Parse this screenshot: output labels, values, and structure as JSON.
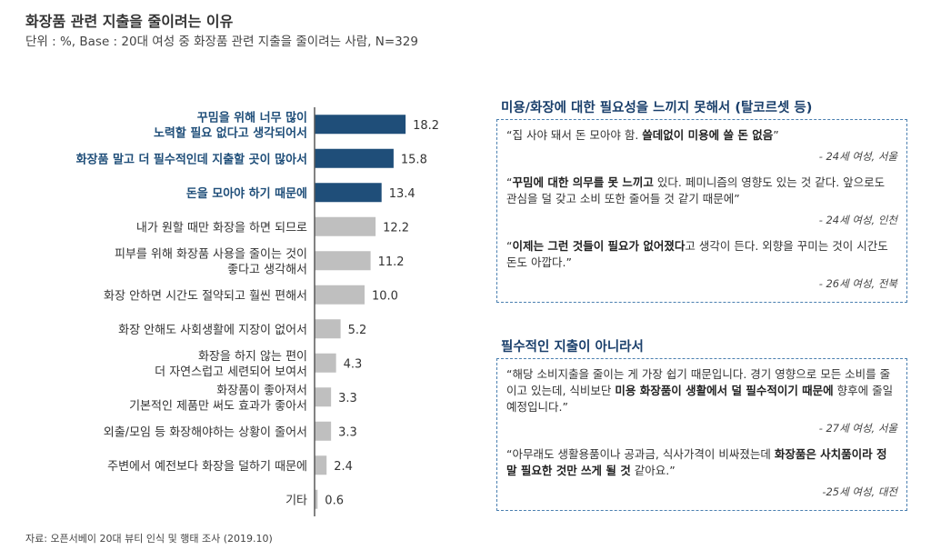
{
  "header": {
    "title": "화장품 관련 지출을 줄이려는 이유",
    "subtitle": "단위 : %, Base : 20대 여성 중 화장품 관련 지출을 줄이려는 사람, N=329"
  },
  "colors": {
    "highlight": "#1f4e79",
    "normal": "#bfbfbf",
    "axis": "#595959"
  },
  "chart_data": {
    "type": "bar",
    "orientation": "horizontal",
    "title": "화장품 관련 지출을 줄이려는 이유",
    "unit": "%",
    "categories": [
      [
        "꾸밈을 위해 너무 많이",
        "노력할 필요 없다고 생각되어서"
      ],
      [
        "화장품 말고 더 필수적인데 지출할 곳이 많아서"
      ],
      [
        "돈을 모아야 하기 때문에"
      ],
      [
        "내가 원할 때만 화장을 하면 되므로"
      ],
      [
        "피부를 위해 화장품 사용을 줄이는 것이",
        "좋다고 생각해서"
      ],
      [
        "화장 안하면 시간도 절약되고 훨씬 편해서"
      ],
      [
        "화장 안해도 사회생활에 지장이 없어서"
      ],
      [
        "화장을 하지 않는 편이",
        "더 자연스럽고 세련되어 보여서"
      ],
      [
        "화장품이 좋아져서",
        "기본적인 제품만 써도 효과가 좋아서"
      ],
      [
        "외출/모임 등 화장해야하는 상황이 줄어서"
      ],
      [
        "주변에서 예전보다 화장을 덜하기 때문에"
      ],
      [
        "기타"
      ]
    ],
    "values": [
      18.2,
      15.8,
      13.4,
      12.2,
      11.2,
      10.0,
      5.2,
      4.3,
      3.3,
      3.3,
      2.4,
      0.6
    ],
    "value_labels": [
      "18.2",
      "15.8",
      "13.4",
      "12.2",
      "11.2",
      "10.0",
      "5.2",
      "4.3",
      "3.3",
      "3.3",
      "2.4",
      "0.6"
    ],
    "highlighted": [
      true,
      true,
      true,
      false,
      false,
      false,
      false,
      false,
      false,
      false,
      false,
      false
    ],
    "xlim": [
      0,
      20
    ]
  },
  "right_panel": {
    "section1": {
      "title": "미용/화장에 대한 필요성을 느끼지 못해서 (탈코르셋 등)",
      "quotes": [
        {
          "plain1": "“집 사야 돼서 돈 모아야 함. ",
          "bold1": "쓸데없이 미용에 쓸 돈 없음",
          "plain2": "”",
          "bold2": "",
          "plain3": "",
          "attribution": "- 24세 여성, 서울"
        },
        {
          "plain1": "“",
          "bold1": "꾸밈에 대한 의무를 못 느끼고",
          "plain2": " 있다. 페미니즘의 영향도 있는 것 같다. 앞으로도 관심을 덜 갖고 소비 또한 줄어들 것 같기 때문에”",
          "bold2": "",
          "plain3": "",
          "attribution": "- 24세 여성, 인천"
        },
        {
          "plain1": "“",
          "bold1": "이제는 그런 것들이 필요가 없어졌다",
          "plain2": "고 생각이 든다. 외향을 꾸미는 것이 시간도 돈도 아깝다.”",
          "bold2": "",
          "plain3": "",
          "attribution": "- 26세 여성, 전북"
        }
      ]
    },
    "section2": {
      "title": "필수적인 지출이 아니라서",
      "quotes": [
        {
          "plain1": "“해당 소비지출을 줄이는 게 가장 쉽기 때문입니다. 경기 영향으로 모든 소비를 줄이고 있는데, 식비보단 ",
          "bold1": "미용 화장품이 생활에서 덜 필수적이기 때문에",
          "plain2": " 향후에 줄일 예정입니다.”",
          "bold2": "",
          "plain3": "",
          "attribution": "- 27세 여성, 서울"
        },
        {
          "plain1": "“아무래도 생활용품이나 공과금, 식사가격이 비싸졌는데 ",
          "bold1": "화장품은 사치품이라 정말 필요한 것만 쓰게 될 것",
          "plain2": " 같아요.”",
          "bold2": "",
          "plain3": "",
          "attribution": "-25세 여성, 대전"
        }
      ]
    }
  },
  "footer": {
    "source": "자료: 오픈서베이 20대 뷰티 인식 및 행태 조사 (2019.10)"
  }
}
